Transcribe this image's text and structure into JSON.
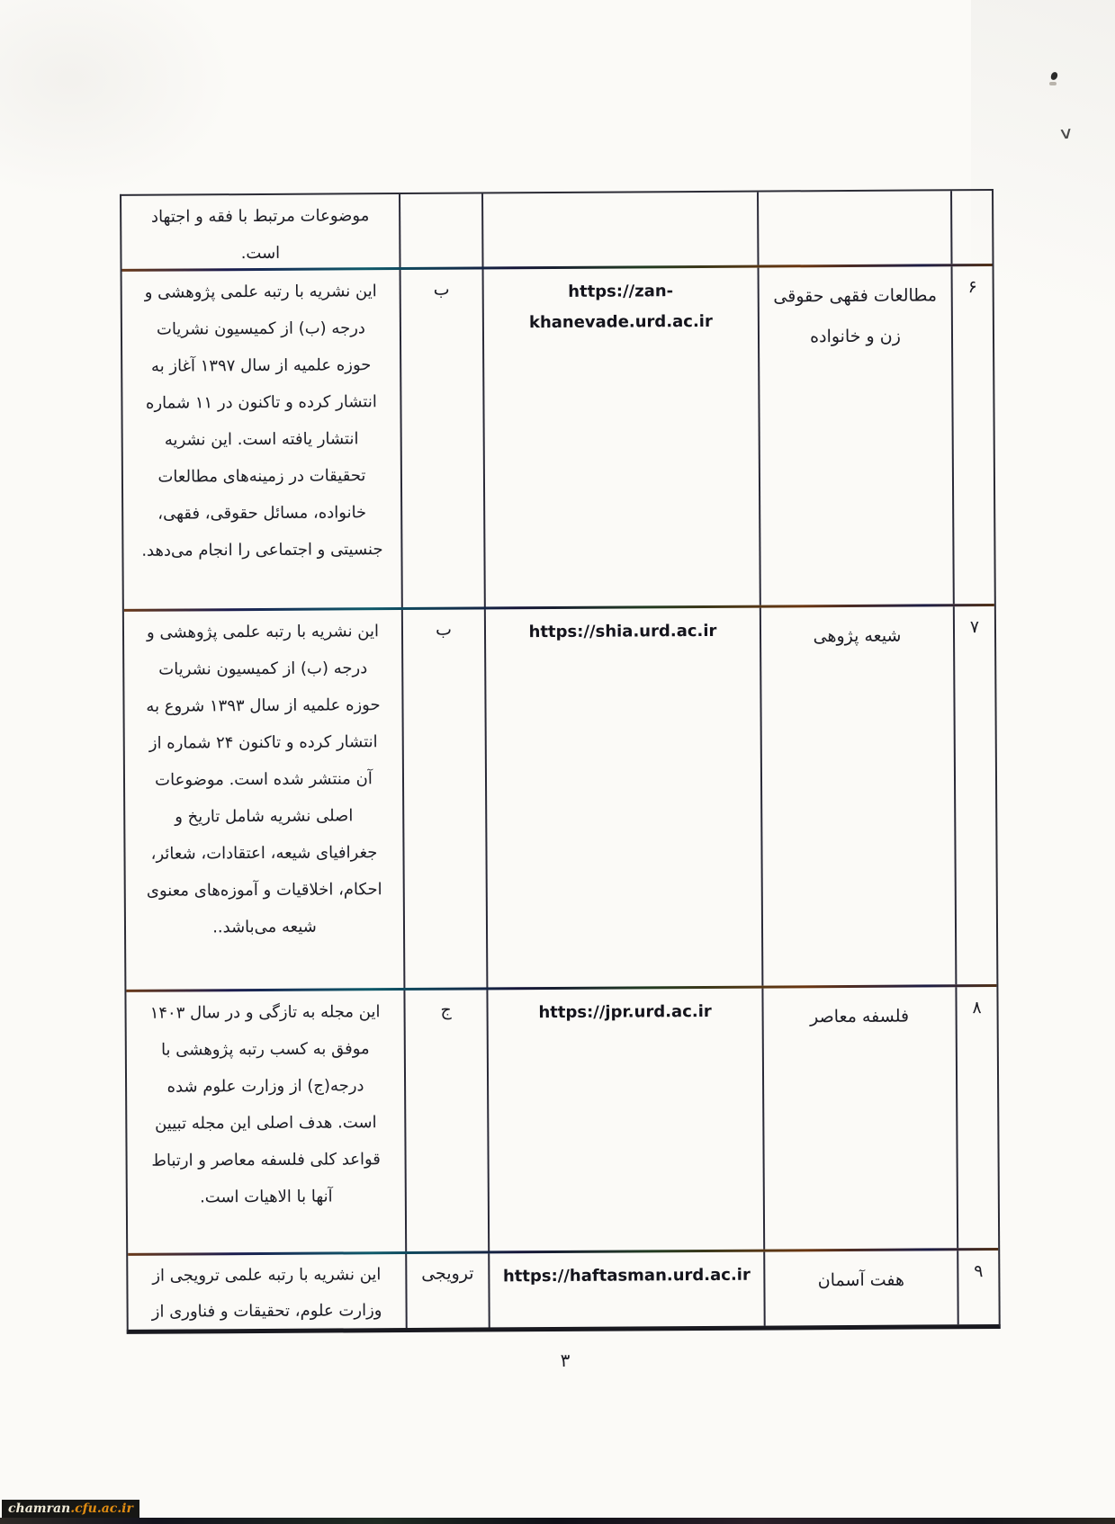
{
  "page": {
    "page_number": "۳",
    "watermark": {
      "prefix": "chamran",
      "suffix": ".cfu.ac.ir"
    }
  },
  "colors": {
    "paper": "#fbfaf7",
    "ink": "#1c1c24",
    "table_border": "#2c2c36",
    "watermark_bg": "#171715",
    "watermark_orange": "#e08c12"
  },
  "table": {
    "carryover_row": {
      "description_lines": [
        "موضوعات مرتبط با فقه و اجتهاد",
        "است."
      ]
    },
    "rows": [
      {
        "number": "۶",
        "name_lines": [
          "مطالعات فقهی حقوقی",
          "زن و خانواده"
        ],
        "url_lines": [
          "https://zan-",
          "khanevade.urd.ac.ir"
        ],
        "grade": "ب",
        "description_lines": [
          "این نشریه با رتبه علمی پژوهشی و",
          "درجه (ب) از کمیسیون نشریات",
          "حوزه علمیه از سال ۱۳۹۷ آغاز به",
          "انتشار کرده و تاکنون در ۱۱ شماره",
          "انتشار یافته است. این نشریه",
          "تحقیقات در زمینه‌های مطالعات",
          "خانواده، مسائل حقوقی، فقهی،",
          "جنسیتی و اجتماعی را انجام می‌دهد."
        ]
      },
      {
        "number": "۷",
        "name_lines": [
          "شیعه پژوهی"
        ],
        "url_lines": [
          "https://shia.urd.ac.ir"
        ],
        "grade": "ب",
        "description_lines": [
          "این نشریه با رتبه علمی پژوهشی و",
          "درجه (ب) از کمیسیون نشریات",
          "حوزه علمیه از سال ۱۳۹۳ شروع به",
          "انتشار کرده و تاکنون ۲۴ شماره از",
          "آن منتشر شده است. موضوعات",
          "اصلی نشریه شامل تاریخ و",
          "جغرافیای شیعه، اعتقادات، شعائر،",
          "احکام، اخلاقیات و آموزه‌های معنوی",
          "شیعه می‌باشد.."
        ]
      },
      {
        "number": "۸",
        "name_lines": [
          "فلسفه معاصر"
        ],
        "url_lines": [
          "https://jpr.urd.ac.ir"
        ],
        "grade": "ج",
        "description_lines": [
          "این مجله به تازگی و در سال ۱۴۰۳",
          "موفق به کسب رتبه پژوهشی با",
          "درجه(ج) از وزارت علوم شده",
          "است. هدف اصلی این مجله تبیین",
          "قواعد کلی فلسفه معاصر و ارتباط",
          "آنها با الاهیات است."
        ]
      },
      {
        "number": "۹",
        "name_lines": [
          "هفت آسمان"
        ],
        "url_lines": [
          "https://haftasman.urd.ac.ir"
        ],
        "grade": "ترویجی",
        "description_lines": [
          "این نشریه با رتبه علمی ترویجی از",
          "وزارت علوم، تحقیقات و فناوری از"
        ]
      }
    ]
  }
}
